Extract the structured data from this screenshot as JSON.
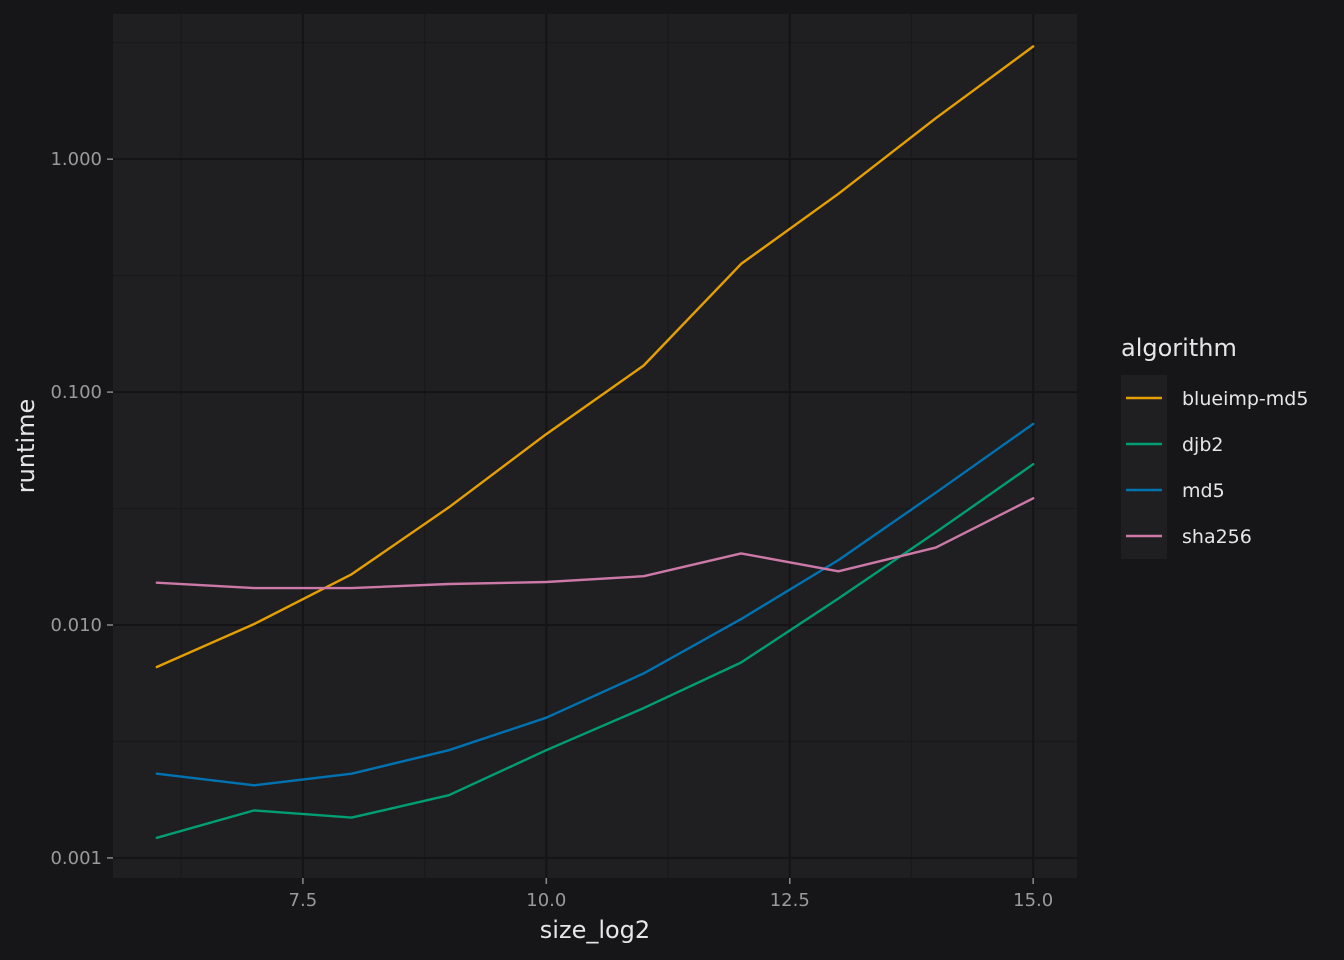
{
  "chart_data": {
    "type": "line",
    "xlabel": "size_log2",
    "ylabel": "runtime",
    "x_ticks": [
      7.5,
      10.0,
      12.5,
      15.0
    ],
    "x_tick_labels": [
      "7.5",
      "10.0",
      "12.5",
      "15.0"
    ],
    "y_ticks": [
      0.001,
      0.01,
      0.1,
      1.0
    ],
    "y_tick_labels": [
      "0.001",
      "0.010",
      "0.100",
      "1.000"
    ],
    "y_scale": "log10",
    "xlim": [
      5.55,
      15.45
    ],
    "ylim": [
      0.00082,
      4.2
    ],
    "grid": true,
    "legend": {
      "title": "algorithm",
      "placement": "right"
    },
    "x": [
      6,
      7,
      8,
      9,
      10,
      11,
      12,
      13,
      14,
      15
    ],
    "series": [
      {
        "name": "blueimp-md5",
        "color": "#E69F00",
        "values": [
          0.0066,
          0.0101,
          0.0165,
          0.032,
          0.066,
          0.13,
          0.355,
          0.71,
          1.5,
          3.05
        ]
      },
      {
        "name": "djb2",
        "color": "#009E73",
        "values": [
          0.00122,
          0.0016,
          0.00149,
          0.00186,
          0.0029,
          0.0044,
          0.0069,
          0.013,
          0.025,
          0.049
        ]
      },
      {
        "name": "md5",
        "color": "#0072B2",
        "values": [
          0.0023,
          0.00205,
          0.0023,
          0.0029,
          0.004,
          0.0062,
          0.0106,
          0.019,
          0.037,
          0.073
        ]
      },
      {
        "name": "sha256",
        "color": "#CC79A7",
        "values": [
          0.0152,
          0.0144,
          0.0144,
          0.015,
          0.0153,
          0.0162,
          0.0203,
          0.017,
          0.0215,
          0.035
        ]
      }
    ]
  }
}
